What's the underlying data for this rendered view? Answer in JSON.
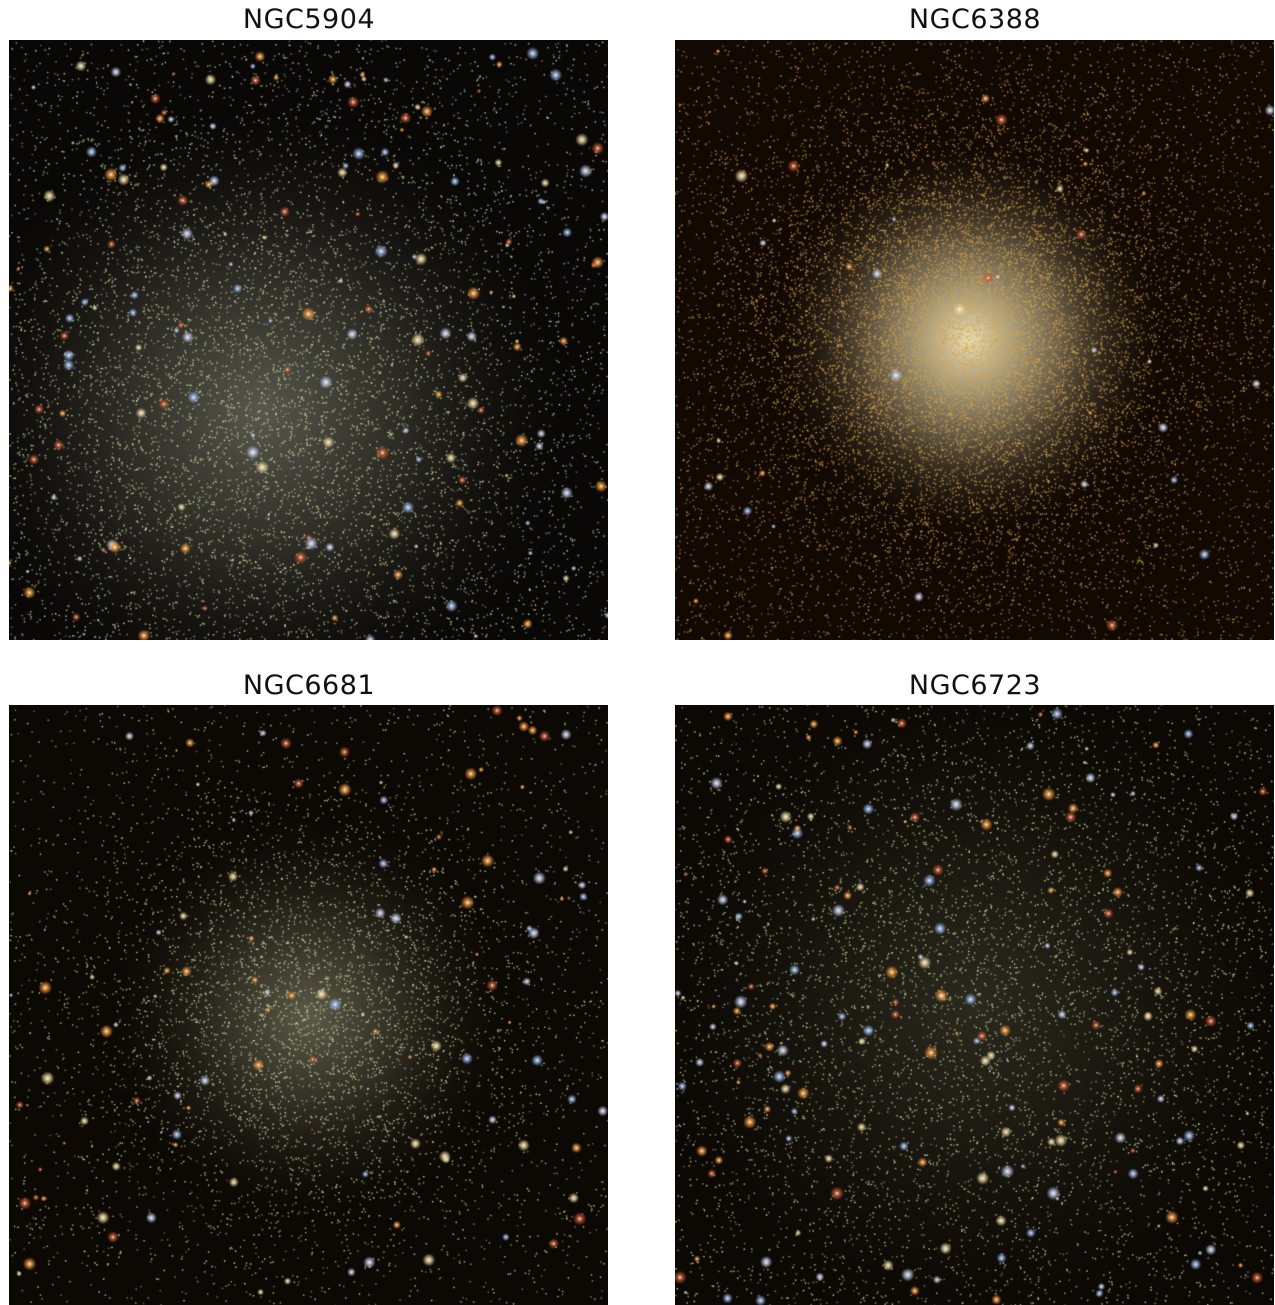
{
  "figure": {
    "panels": [
      {
        "title": "NGC5904",
        "image_description_name": "globular-cluster-image",
        "palette": {
          "background": "#0a0806",
          "core": "#e8ecd0",
          "field": "#cfe3a0"
        }
      },
      {
        "title": "NGC6388",
        "image_description_name": "globular-cluster-image",
        "palette": {
          "background": "#120903",
          "core": "#fff2c0",
          "field": "#d9a24a"
        }
      },
      {
        "title": "NGC6681",
        "image_description_name": "globular-cluster-image",
        "palette": {
          "background": "#0c0804",
          "core": "#f0f0c8",
          "field": "#cfe3a0"
        }
      },
      {
        "title": "NGC6723",
        "image_description_name": "globular-cluster-image",
        "palette": {
          "background": "#0c0804",
          "core": "#dfe8b8",
          "field": "#cfe3a0"
        }
      }
    ]
  }
}
